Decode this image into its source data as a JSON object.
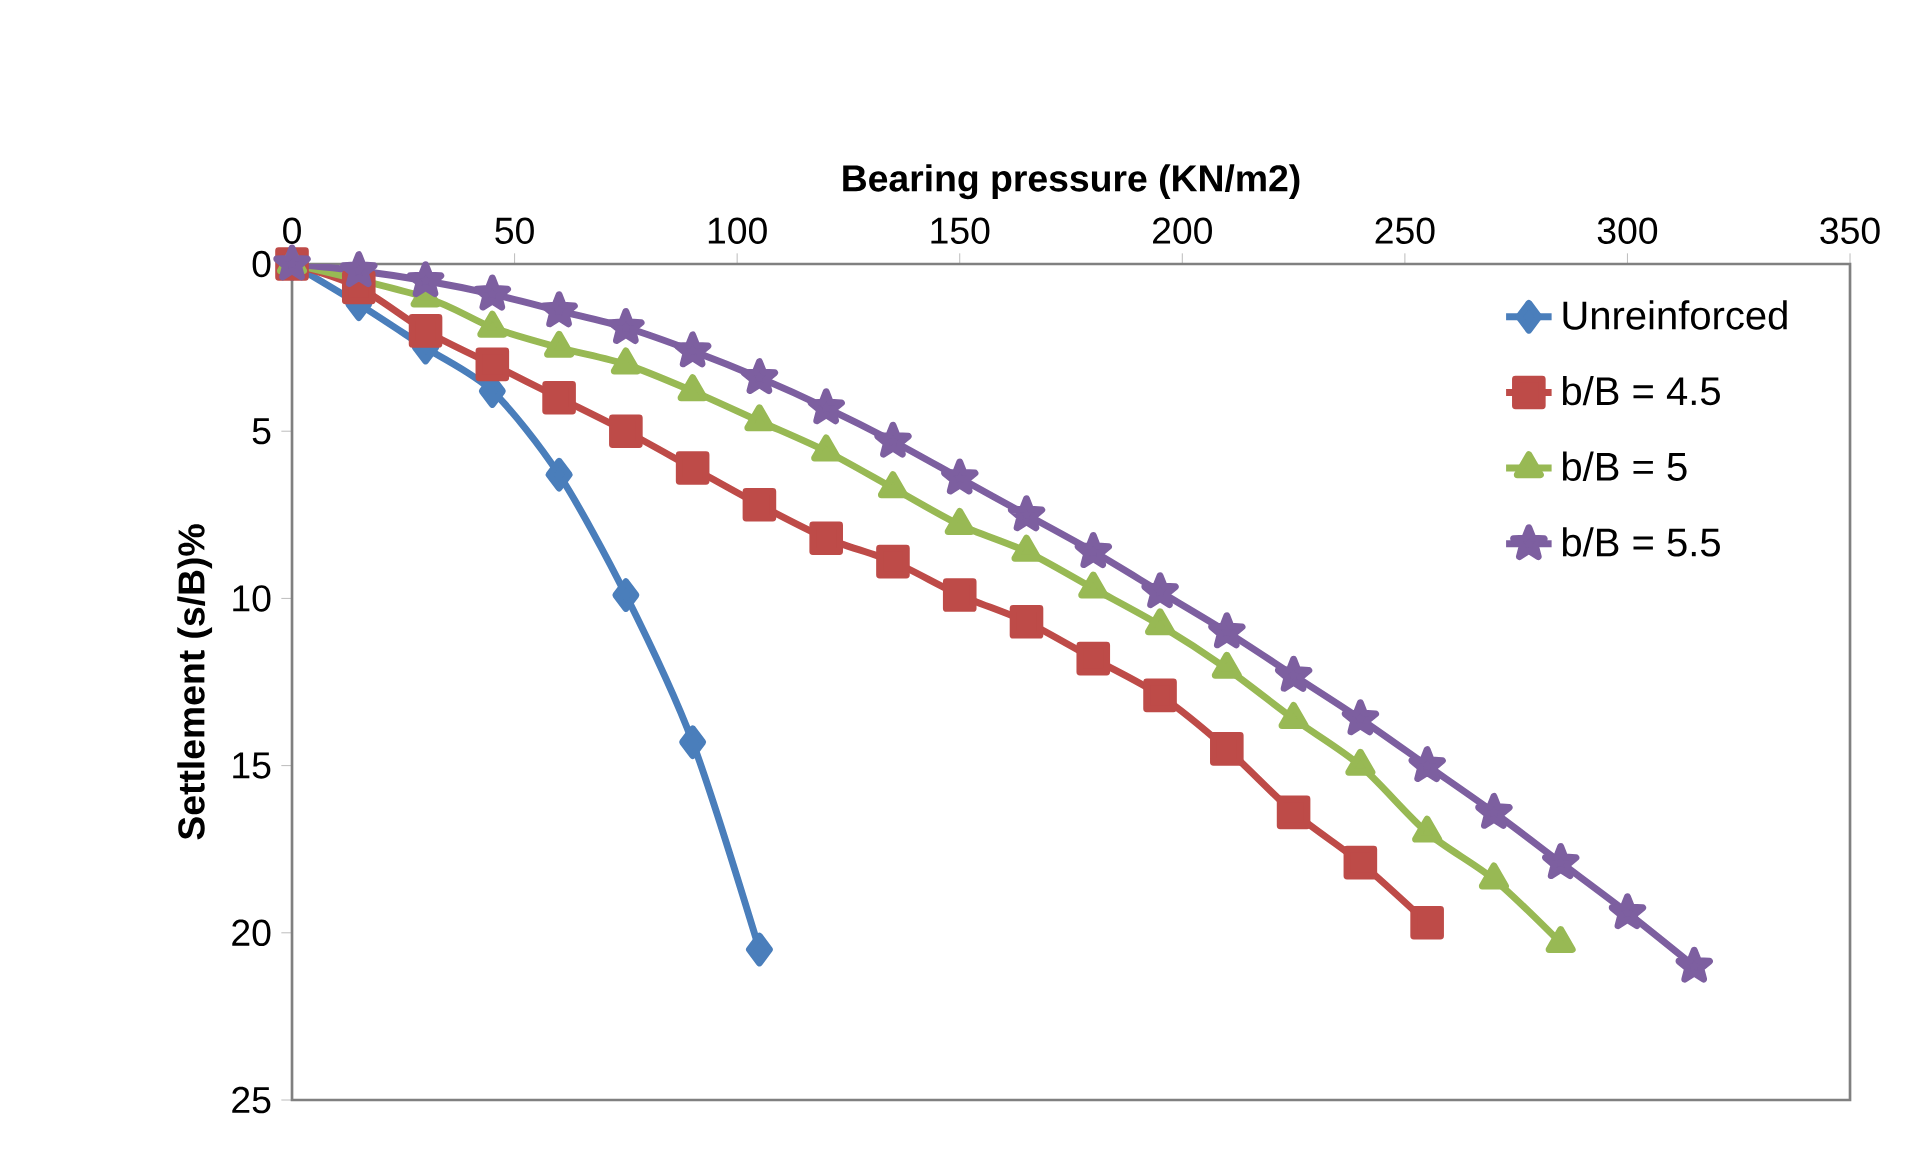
{
  "chart_data": {
    "type": "line",
    "xlabel": "Bearing pressure (KN/m2)",
    "ylabel": "Settlement (s/B)%",
    "xlim": [
      0,
      350
    ],
    "xticks": [
      0,
      50,
      100,
      150,
      200,
      250,
      300,
      350
    ],
    "ylim": [
      25,
      0
    ],
    "yticks": [
      0,
      5,
      10,
      15,
      20,
      25
    ],
    "grid": false,
    "legend": "top right",
    "line_style": "solid",
    "series": [
      {
        "name": "Unreinforced",
        "color": "#4a7ebb",
        "marker": "diamond",
        "x": [
          0,
          15,
          30,
          45,
          60,
          75,
          90,
          105
        ],
        "values": [
          0,
          1.2,
          2.5,
          3.8,
          6.3,
          9.9,
          14.3,
          20.5
        ]
      },
      {
        "name": "b/B = 4.5",
        "color": "#be4b48",
        "marker": "square",
        "x": [
          0,
          15,
          30,
          45,
          60,
          75,
          90,
          105,
          120,
          135,
          150,
          165,
          180,
          195,
          210,
          225,
          240,
          255
        ],
        "values": [
          0,
          0.7,
          2.0,
          3.0,
          4.0,
          5.0,
          6.1,
          7.2,
          8.2,
          8.9,
          9.9,
          10.7,
          11.8,
          12.9,
          14.5,
          16.4,
          17.9,
          19.7
        ]
      },
      {
        "name": "b/B = 5",
        "color": "#98b954",
        "marker": "triangle",
        "x": [
          0,
          15,
          30,
          45,
          60,
          75,
          90,
          105,
          120,
          135,
          150,
          165,
          180,
          195,
          210,
          225,
          240,
          255,
          270,
          285
        ],
        "values": [
          0,
          null,
          1.0,
          1.9,
          2.5,
          3.0,
          3.8,
          4.7,
          5.6,
          6.7,
          7.8,
          8.6,
          9.7,
          10.8,
          12.1,
          13.6,
          15.0,
          17.0,
          18.4,
          20.3
        ]
      },
      {
        "name": "b/B = 5.5",
        "color": "#7d5fa0",
        "marker": "star",
        "x": [
          0,
          15,
          30,
          45,
          60,
          75,
          90,
          105,
          120,
          135,
          150,
          165,
          180,
          195,
          210,
          225,
          240,
          255,
          270,
          285,
          300,
          315
        ],
        "values": [
          0,
          0.2,
          0.5,
          0.9,
          1.4,
          1.9,
          2.6,
          3.4,
          4.3,
          5.3,
          6.4,
          7.5,
          8.6,
          9.8,
          11.0,
          12.3,
          13.6,
          15.0,
          16.4,
          17.9,
          19.4,
          21.0
        ]
      }
    ]
  }
}
